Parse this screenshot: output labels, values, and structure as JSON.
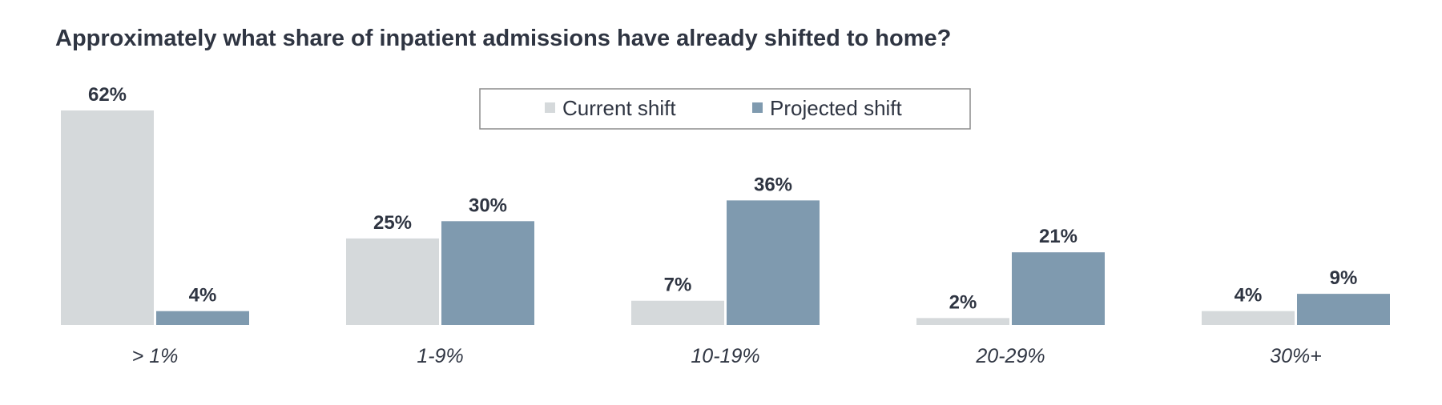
{
  "chart_data": {
    "type": "bar",
    "title": "Approximately what share of inpatient admissions have already shifted to home?",
    "xlabel": "",
    "ylabel": "",
    "ylim": [
      0,
      62
    ],
    "grid": false,
    "legend_position": "top-center",
    "categories": [
      "> 1%",
      "1-9%",
      "10-19%",
      "20-29%",
      "30%+"
    ],
    "series": [
      {
        "name": "Current shift",
        "color": "#d5d9db",
        "values": [
          62,
          25,
          7,
          2,
          4
        ],
        "labels": [
          "62%",
          "25%",
          "7%",
          "2%",
          "4%"
        ]
      },
      {
        "name": "Projected shift",
        "color": "#7f9aaf",
        "values": [
          4,
          30,
          36,
          21,
          9
        ],
        "labels": [
          "4%",
          "30%",
          "36%",
          "21%",
          "9%"
        ]
      }
    ]
  }
}
